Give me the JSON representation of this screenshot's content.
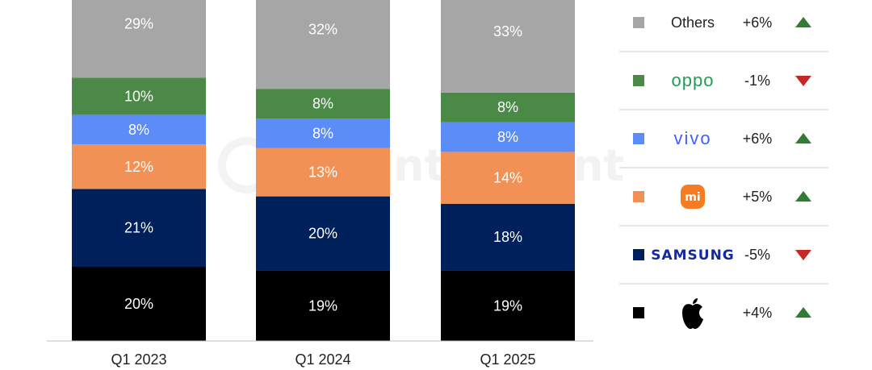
{
  "chart_data": {
    "type": "stacked-bar",
    "categories": [
      "Q1 2023",
      "Q1 2024",
      "Q1 2025"
    ],
    "series": [
      {
        "name": "Apple",
        "color": "#000000",
        "values": [
          20,
          19,
          19
        ],
        "labels": [
          "20%",
          "19%",
          "19%"
        ],
        "change": "+4%",
        "trend": "up"
      },
      {
        "name": "Samsung",
        "color": "#00205b",
        "values": [
          21,
          20,
          18
        ],
        "labels": [
          "21%",
          "20%",
          "18%"
        ],
        "change": "-5%",
        "trend": "down"
      },
      {
        "name": "Xiaomi",
        "color": "#f29155",
        "values": [
          12,
          13,
          14
        ],
        "labels": [
          "12%",
          "13%",
          "14%"
        ],
        "change": "+5%",
        "trend": "up"
      },
      {
        "name": "vivo",
        "color": "#5b8cf7",
        "values": [
          8,
          8,
          8
        ],
        "labels": [
          "8%",
          "8%",
          "8%"
        ],
        "change": "+6%",
        "trend": "up"
      },
      {
        "name": "OPPO",
        "color": "#4a8a46",
        "values": [
          10,
          8,
          8
        ],
        "labels": [
          "10%",
          "8%",
          "8%"
        ],
        "change": "-1%",
        "trend": "down"
      },
      {
        "name": "Others",
        "color": "#a6a6a6",
        "values": [
          29,
          32,
          33
        ],
        "labels": [
          "29%",
          "32%",
          "33%"
        ],
        "change": "+6%",
        "trend": "up"
      }
    ],
    "legend": {
      "placement": "right",
      "order_top_to_bottom": [
        "Others",
        "OPPO",
        "vivo",
        "Xiaomi",
        "Samsung",
        "Apple"
      ],
      "others_label": "Others",
      "brand_texts": {
        "OPPO": "oppo",
        "vivo": "vivo",
        "Xiaomi": "mi",
        "Samsung": "SAMSUNG"
      },
      "up_color": "#2e7d32",
      "down_color": "#c62828"
    },
    "watermark": "Counterpoint",
    "grid": false
  }
}
